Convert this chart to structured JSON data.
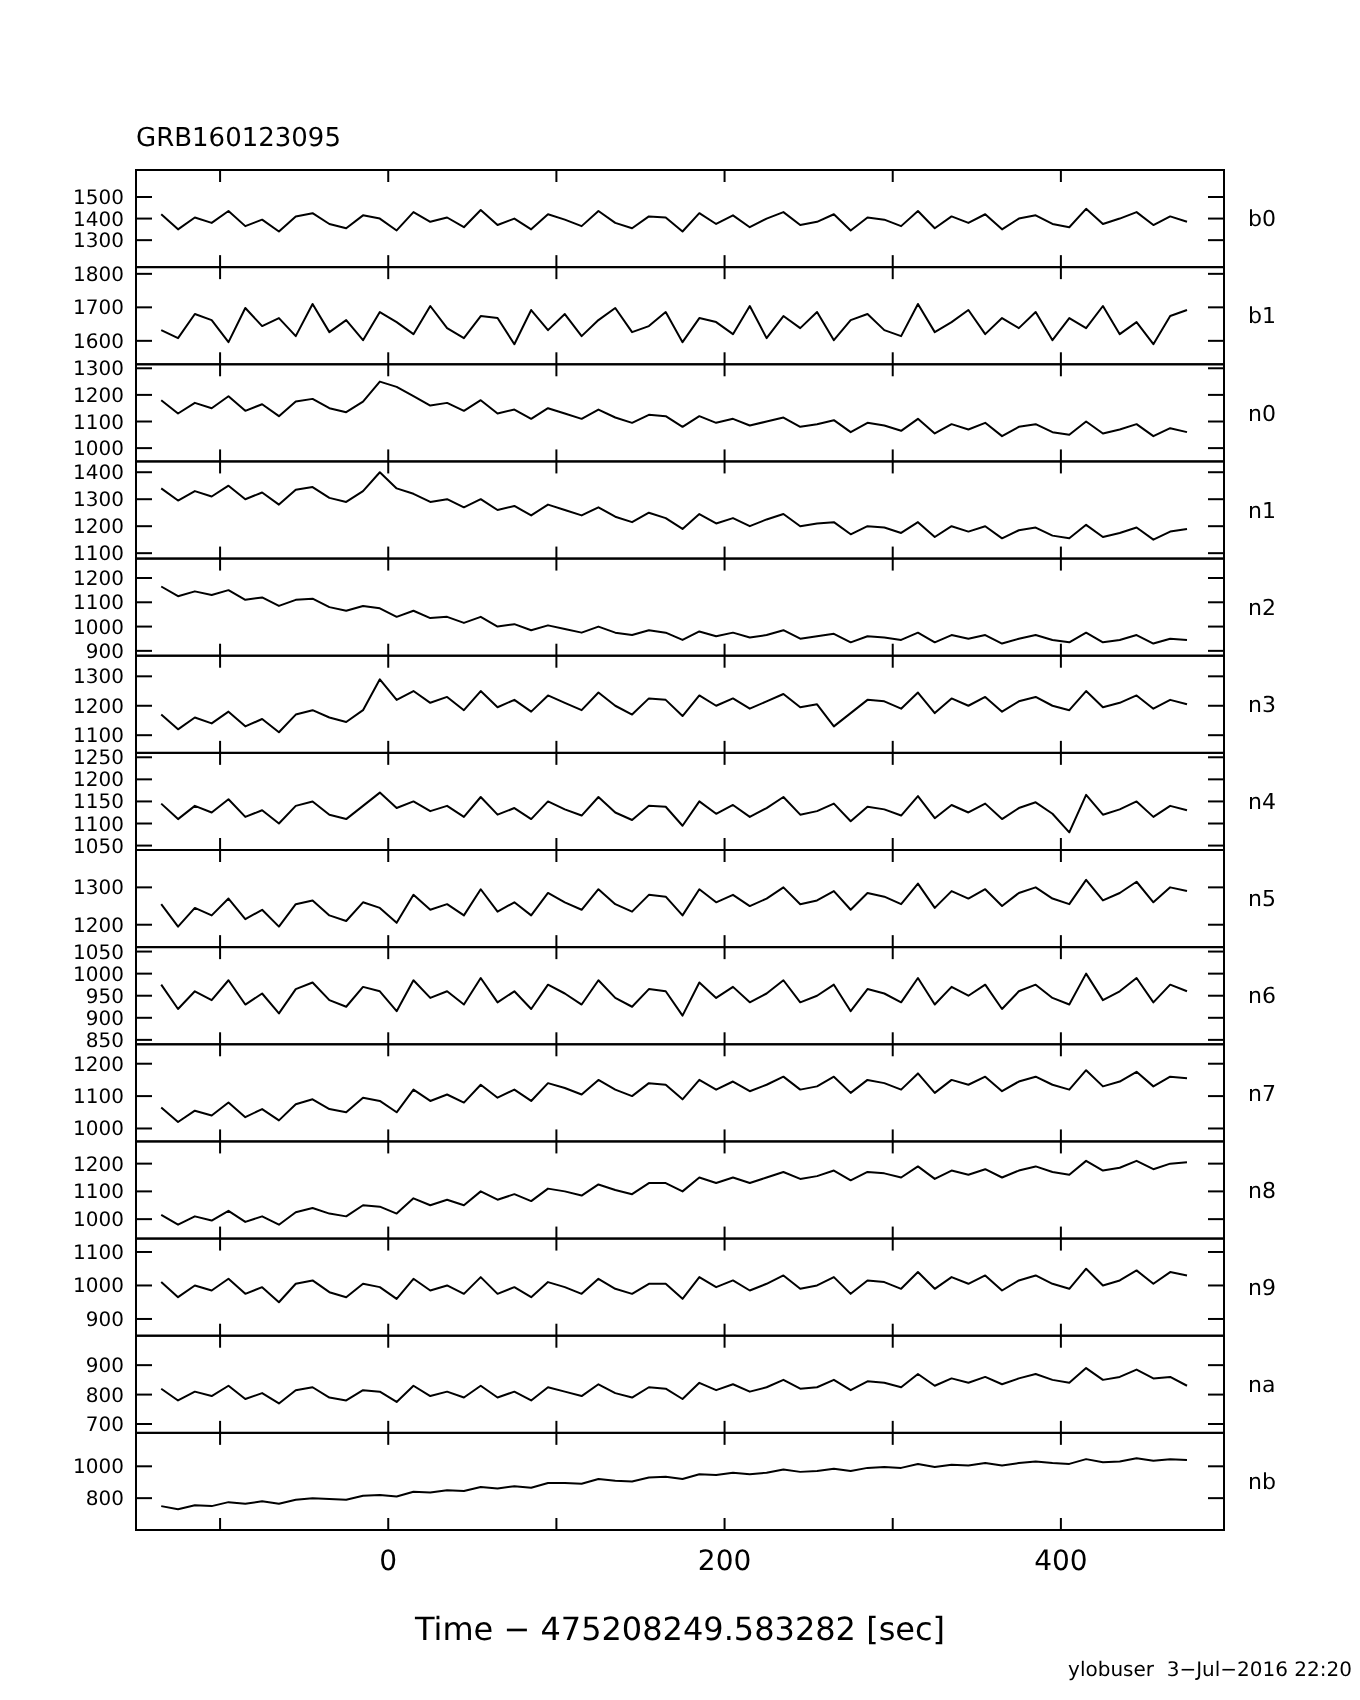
{
  "chart_data": [
    {
      "type": "line",
      "title": "GRB160123095",
      "legend": "right",
      "tick_labels": "y",
      "xlim": [
        -150,
        497
      ],
      "xticks": [
        {
          "value": -100,
          "label": null
        },
        0,
        {
          "value": 100,
          "label": null
        },
        200,
        {
          "value": 300,
          "label": null
        },
        400
      ],
      "ylim": [
        1175,
        1625
      ],
      "yticks": [
        1300,
        1400,
        1500
      ],
      "x": [
        -135,
        -125,
        -115,
        -105,
        -95,
        -85,
        -75,
        -65,
        -55,
        -45,
        -35,
        -25,
        -15,
        -5,
        5,
        15,
        25,
        35,
        45,
        55,
        65,
        75,
        85,
        95,
        105,
        115,
        125,
        135,
        145,
        155,
        165,
        175,
        185,
        195,
        205,
        215,
        225,
        235,
        245,
        255,
        265,
        275,
        285,
        295,
        305,
        315,
        325,
        335,
        345,
        355,
        365,
        375,
        385,
        395,
        405,
        415,
        425,
        435,
        445,
        455,
        465,
        475
      ],
      "series": [
        {
          "name": "b0",
          "color": "#000000",
          "values": [
            1420,
            1350,
            1405,
            1380,
            1435,
            1365,
            1395,
            1340,
            1410,
            1425,
            1375,
            1355,
            1415,
            1400,
            1345,
            1430,
            1385,
            1405,
            1360,
            1440,
            1370,
            1400,
            1350,
            1420,
            1395,
            1365,
            1435,
            1380,
            1355,
            1410,
            1405,
            1340,
            1425,
            1375,
            1415,
            1360,
            1400,
            1430,
            1370,
            1385,
            1420,
            1345,
            1405,
            1395,
            1365,
            1435,
            1355,
            1410,
            1380,
            1420,
            1350,
            1400,
            1415,
            1375,
            1360,
            1445,
            1375,
            1400,
            1430,
            1370,
            1410,
            1385
          ]
        }
      ]
    },
    {
      "type": "line",
      "legend": "right",
      "tick_labels": "y",
      "xlim": [
        -150,
        497
      ],
      "xticks": [
        {
          "value": -100,
          "label": null
        },
        0,
        {
          "value": 100,
          "label": null
        },
        200,
        {
          "value": 300,
          "label": null
        },
        400
      ],
      "ylim": [
        1530,
        1820
      ],
      "yticks": [
        1600,
        1700,
        1800
      ],
      "x": [
        -135,
        -125,
        -115,
        -105,
        -95,
        -85,
        -75,
        -65,
        -55,
        -45,
        -35,
        -25,
        -15,
        -5,
        5,
        15,
        25,
        35,
        45,
        55,
        65,
        75,
        85,
        95,
        105,
        115,
        125,
        135,
        145,
        155,
        165,
        175,
        185,
        195,
        205,
        215,
        225,
        235,
        245,
        255,
        265,
        275,
        285,
        295,
        305,
        315,
        325,
        335,
        345,
        355,
        365,
        375,
        385,
        395,
        405,
        415,
        425,
        435,
        445,
        455,
        465,
        475
      ],
      "series": [
        {
          "name": "b1",
          "color": "#000000",
          "values": [
            1632,
            1608,
            1680,
            1662,
            1596,
            1698,
            1644,
            1668,
            1614,
            1710,
            1626,
            1662,
            1602,
            1686,
            1656,
            1620,
            1704,
            1638,
            1608,
            1674,
            1668,
            1590,
            1692,
            1632,
            1680,
            1614,
            1662,
            1698,
            1626,
            1644,
            1686,
            1596,
            1668,
            1656,
            1620,
            1704,
            1608,
            1674,
            1638,
            1686,
            1602,
            1662,
            1680,
            1632,
            1614,
            1710,
            1626,
            1656,
            1692,
            1620,
            1668,
            1638,
            1686,
            1602,
            1668,
            1638,
            1704,
            1620,
            1656,
            1590,
            1674,
            1692
          ]
        }
      ]
    },
    {
      "type": "line",
      "legend": "right",
      "tick_labels": "y",
      "xlim": [
        -150,
        497
      ],
      "xticks": [
        {
          "value": -100,
          "label": null
        },
        0,
        {
          "value": 100,
          "label": null
        },
        200,
        {
          "value": 300,
          "label": null
        },
        400
      ],
      "ylim": [
        950,
        1315
      ],
      "yticks": [
        1000,
        1100,
        1200,
        1300
      ],
      "x": [
        -135,
        -125,
        -115,
        -105,
        -95,
        -85,
        -75,
        -65,
        -55,
        -45,
        -35,
        -25,
        -15,
        -5,
        5,
        15,
        25,
        35,
        45,
        55,
        65,
        75,
        85,
        95,
        105,
        115,
        125,
        135,
        145,
        155,
        165,
        175,
        185,
        195,
        205,
        215,
        225,
        235,
        245,
        255,
        265,
        275,
        285,
        295,
        305,
        315,
        325,
        335,
        345,
        355,
        365,
        375,
        385,
        395,
        405,
        415,
        425,
        435,
        445,
        455,
        465,
        475
      ],
      "series": [
        {
          "name": "n0",
          "color": "#000000",
          "values": [
            1180,
            1130,
            1170,
            1150,
            1195,
            1140,
            1165,
            1120,
            1175,
            1185,
            1150,
            1135,
            1175,
            1250,
            1230,
            1195,
            1160,
            1170,
            1140,
            1180,
            1130,
            1145,
            1110,
            1150,
            1130,
            1110,
            1145,
            1115,
            1095,
            1125,
            1120,
            1080,
            1120,
            1095,
            1110,
            1085,
            1100,
            1115,
            1080,
            1090,
            1105,
            1060,
            1095,
            1085,
            1065,
            1110,
            1055,
            1090,
            1070,
            1095,
            1045,
            1080,
            1090,
            1060,
            1050,
            1100,
            1055,
            1070,
            1090,
            1045,
            1075,
            1060
          ]
        }
      ]
    },
    {
      "type": "line",
      "legend": "right",
      "tick_labels": "y",
      "xlim": [
        -150,
        497
      ],
      "xticks": [
        {
          "value": -100,
          "label": null
        },
        0,
        {
          "value": 100,
          "label": null
        },
        200,
        {
          "value": 300,
          "label": null
        },
        400
      ],
      "ylim": [
        1080,
        1440
      ],
      "yticks": [
        1100,
        1200,
        1300,
        1400
      ],
      "x": [
        -135,
        -125,
        -115,
        -105,
        -95,
        -85,
        -75,
        -65,
        -55,
        -45,
        -35,
        -25,
        -15,
        -5,
        5,
        15,
        25,
        35,
        45,
        55,
        65,
        75,
        85,
        95,
        105,
        115,
        125,
        135,
        145,
        155,
        165,
        175,
        185,
        195,
        205,
        215,
        225,
        235,
        245,
        255,
        265,
        275,
        285,
        295,
        305,
        315,
        325,
        335,
        345,
        355,
        365,
        375,
        385,
        395,
        405,
        415,
        425,
        435,
        445,
        455,
        465,
        475
      ],
      "series": [
        {
          "name": "n1",
          "color": "#000000",
          "values": [
            1340,
            1295,
            1330,
            1310,
            1350,
            1300,
            1325,
            1280,
            1335,
            1345,
            1305,
            1290,
            1330,
            1400,
            1340,
            1320,
            1290,
            1300,
            1270,
            1300,
            1260,
            1275,
            1240,
            1280,
            1260,
            1240,
            1270,
            1235,
            1215,
            1250,
            1230,
            1190,
            1245,
            1210,
            1230,
            1200,
            1225,
            1245,
            1200,
            1210,
            1215,
            1170,
            1200,
            1195,
            1175,
            1215,
            1160,
            1200,
            1180,
            1200,
            1155,
            1185,
            1195,
            1165,
            1155,
            1205,
            1160,
            1175,
            1195,
            1150,
            1180,
            1190
          ]
        }
      ]
    },
    {
      "type": "line",
      "legend": "right",
      "tick_labels": "y",
      "xlim": [
        -150,
        497
      ],
      "xticks": [
        {
          "value": -100,
          "label": null
        },
        0,
        {
          "value": 100,
          "label": null
        },
        200,
        {
          "value": 300,
          "label": null
        },
        400
      ],
      "ylim": [
        880,
        1280
      ],
      "yticks": [
        900,
        1000,
        1100,
        1200
      ],
      "x": [
        -135,
        -125,
        -115,
        -105,
        -95,
        -85,
        -75,
        -65,
        -55,
        -45,
        -35,
        -25,
        -15,
        -5,
        5,
        15,
        25,
        35,
        45,
        55,
        65,
        75,
        85,
        95,
        105,
        115,
        125,
        135,
        145,
        155,
        165,
        175,
        185,
        195,
        205,
        215,
        225,
        235,
        245,
        255,
        265,
        275,
        285,
        295,
        305,
        315,
        325,
        335,
        345,
        355,
        365,
        375,
        385,
        395,
        405,
        415,
        425,
        435,
        445,
        455,
        465,
        475
      ],
      "series": [
        {
          "name": "n2",
          "color": "#000000",
          "values": [
            1165,
            1125,
            1145,
            1130,
            1150,
            1110,
            1120,
            1085,
            1110,
            1115,
            1080,
            1065,
            1085,
            1075,
            1040,
            1065,
            1035,
            1040,
            1015,
            1040,
            1000,
            1010,
            985,
            1005,
            990,
            975,
            1000,
            975,
            965,
            985,
            975,
            945,
            980,
            960,
            975,
            955,
            965,
            985,
            950,
            960,
            970,
            935,
            960,
            955,
            945,
            975,
            935,
            965,
            950,
            965,
            930,
            950,
            965,
            945,
            935,
            975,
            935,
            945,
            965,
            930,
            950,
            945
          ]
        }
      ]
    },
    {
      "type": "line",
      "legend": "right",
      "tick_labels": "y",
      "xlim": [
        -150,
        497
      ],
      "xticks": [
        {
          "value": -100,
          "label": null
        },
        0,
        {
          "value": 100,
          "label": null
        },
        200,
        {
          "value": 300,
          "label": null
        },
        400
      ],
      "ylim": [
        1040,
        1370
      ],
      "yticks": [
        1100,
        1200,
        1300
      ],
      "x": [
        -135,
        -125,
        -115,
        -105,
        -95,
        -85,
        -75,
        -65,
        -55,
        -45,
        -35,
        -25,
        -15,
        -5,
        5,
        15,
        25,
        35,
        45,
        55,
        65,
        75,
        85,
        95,
        105,
        115,
        125,
        135,
        145,
        155,
        165,
        175,
        185,
        195,
        205,
        215,
        225,
        235,
        245,
        255,
        265,
        275,
        285,
        295,
        305,
        315,
        325,
        335,
        345,
        355,
        365,
        375,
        385,
        395,
        405,
        415,
        425,
        435,
        445,
        455,
        465,
        475
      ],
      "series": [
        {
          "name": "n3",
          "color": "#000000",
          "values": [
            1170,
            1120,
            1160,
            1140,
            1180,
            1130,
            1155,
            1110,
            1170,
            1185,
            1160,
            1145,
            1185,
            1290,
            1220,
            1250,
            1210,
            1230,
            1185,
            1250,
            1195,
            1220,
            1180,
            1235,
            1210,
            1185,
            1245,
            1200,
            1170,
            1225,
            1220,
            1165,
            1235,
            1200,
            1225,
            1190,
            1215,
            1240,
            1195,
            1205,
            1130,
            1175,
            1220,
            1215,
            1190,
            1245,
            1175,
            1225,
            1200,
            1230,
            1180,
            1215,
            1230,
            1200,
            1185,
            1250,
            1195,
            1210,
            1235,
            1190,
            1220,
            1205
          ]
        }
      ]
    },
    {
      "type": "line",
      "legend": "right",
      "tick_labels": "y",
      "xlim": [
        -150,
        497
      ],
      "xticks": [
        {
          "value": -100,
          "label": null
        },
        0,
        {
          "value": 100,
          "label": null
        },
        200,
        {
          "value": 300,
          "label": null
        },
        400
      ],
      "ylim": [
        1040,
        1260
      ],
      "yticks": [
        1050,
        1100,
        1150,
        1200,
        1250
      ],
      "x": [
        -135,
        -125,
        -115,
        -105,
        -95,
        -85,
        -75,
        -65,
        -55,
        -45,
        -35,
        -25,
        -15,
        -5,
        5,
        15,
        25,
        35,
        45,
        55,
        65,
        75,
        85,
        95,
        105,
        115,
        125,
        135,
        145,
        155,
        165,
        175,
        185,
        195,
        205,
        215,
        225,
        235,
        245,
        255,
        265,
        275,
        285,
        295,
        305,
        315,
        325,
        335,
        345,
        355,
        365,
        375,
        385,
        395,
        405,
        415,
        425,
        435,
        445,
        455,
        465,
        475
      ],
      "series": [
        {
          "name": "n4",
          "color": "#000000",
          "values": [
            1145,
            1110,
            1140,
            1125,
            1155,
            1115,
            1130,
            1100,
            1140,
            1150,
            1120,
            1110,
            1140,
            1170,
            1135,
            1150,
            1128,
            1140,
            1115,
            1160,
            1120,
            1135,
            1110,
            1150,
            1132,
            1118,
            1160,
            1125,
            1108,
            1140,
            1138,
            1095,
            1150,
            1122,
            1142,
            1115,
            1135,
            1160,
            1120,
            1128,
            1145,
            1105,
            1138,
            1132,
            1118,
            1162,
            1112,
            1142,
            1125,
            1145,
            1110,
            1135,
            1148,
            1122,
            1080,
            1165,
            1120,
            1132,
            1150,
            1115,
            1140,
            1130
          ]
        }
      ]
    },
    {
      "type": "line",
      "legend": "right",
      "tick_labels": "y",
      "xlim": [
        -150,
        497
      ],
      "xticks": [
        {
          "value": -100,
          "label": null
        },
        0,
        {
          "value": 100,
          "label": null
        },
        200,
        {
          "value": 300,
          "label": null
        },
        400
      ],
      "ylim": [
        1140,
        1400
      ],
      "yticks": [
        1200,
        1300
      ],
      "x": [
        -135,
        -125,
        -115,
        -105,
        -95,
        -85,
        -75,
        -65,
        -55,
        -45,
        -35,
        -25,
        -15,
        -5,
        5,
        15,
        25,
        35,
        45,
        55,
        65,
        75,
        85,
        95,
        105,
        115,
        125,
        135,
        145,
        155,
        165,
        175,
        185,
        195,
        205,
        215,
        225,
        235,
        245,
        255,
        265,
        275,
        285,
        295,
        305,
        315,
        325,
        335,
        345,
        355,
        365,
        375,
        385,
        395,
        405,
        415,
        425,
        435,
        445,
        455,
        465,
        475
      ],
      "series": [
        {
          "name": "n5",
          "color": "#000000",
          "values": [
            1255,
            1195,
            1245,
            1225,
            1270,
            1215,
            1240,
            1195,
            1255,
            1265,
            1225,
            1210,
            1260,
            1245,
            1205,
            1280,
            1240,
            1255,
            1225,
            1295,
            1235,
            1260,
            1225,
            1285,
            1260,
            1240,
            1295,
            1255,
            1235,
            1280,
            1275,
            1225,
            1295,
            1260,
            1280,
            1250,
            1270,
            1300,
            1255,
            1265,
            1290,
            1240,
            1285,
            1275,
            1255,
            1310,
            1245,
            1290,
            1270,
            1295,
            1250,
            1285,
            1300,
            1270,
            1255,
            1320,
            1265,
            1285,
            1315,
            1260,
            1300,
            1290
          ]
        }
      ]
    },
    {
      "type": "line",
      "legend": "right",
      "tick_labels": "y",
      "xlim": [
        -150,
        497
      ],
      "xticks": [
        {
          "value": -100,
          "label": null
        },
        0,
        {
          "value": 100,
          "label": null
        },
        200,
        {
          "value": 300,
          "label": null
        },
        400
      ],
      "ylim": [
        840,
        1060
      ],
      "yticks": [
        850,
        900,
        950,
        1000,
        1050
      ],
      "x": [
        -135,
        -125,
        -115,
        -105,
        -95,
        -85,
        -75,
        -65,
        -55,
        -45,
        -35,
        -25,
        -15,
        -5,
        5,
        15,
        25,
        35,
        45,
        55,
        65,
        75,
        85,
        95,
        105,
        115,
        125,
        135,
        145,
        155,
        165,
        175,
        185,
        195,
        205,
        215,
        225,
        235,
        245,
        255,
        265,
        275,
        285,
        295,
        305,
        315,
        325,
        335,
        345,
        355,
        365,
        375,
        385,
        395,
        405,
        415,
        425,
        435,
        445,
        455,
        465,
        475
      ],
      "series": [
        {
          "name": "n6",
          "color": "#000000",
          "values": [
            975,
            920,
            960,
            940,
            985,
            930,
            955,
            910,
            965,
            980,
            940,
            925,
            970,
            960,
            915,
            985,
            945,
            960,
            930,
            990,
            935,
            960,
            920,
            975,
            955,
            930,
            985,
            945,
            925,
            965,
            960,
            905,
            980,
            945,
            970,
            935,
            955,
            985,
            935,
            950,
            975,
            915,
            965,
            955,
            935,
            990,
            930,
            970,
            950,
            975,
            920,
            960,
            975,
            945,
            930,
            1000,
            940,
            960,
            990,
            935,
            975,
            960
          ]
        }
      ]
    },
    {
      "type": "line",
      "legend": "right",
      "tick_labels": "y",
      "xlim": [
        -150,
        497
      ],
      "xticks": [
        {
          "value": -100,
          "label": null
        },
        0,
        {
          "value": 100,
          "label": null
        },
        200,
        {
          "value": 300,
          "label": null
        },
        400
      ],
      "ylim": [
        960,
        1260
      ],
      "yticks": [
        1000,
        1100,
        1200
      ],
      "x": [
        -135,
        -125,
        -115,
        -105,
        -95,
        -85,
        -75,
        -65,
        -55,
        -45,
        -35,
        -25,
        -15,
        -5,
        5,
        15,
        25,
        35,
        45,
        55,
        65,
        75,
        85,
        95,
        105,
        115,
        125,
        135,
        145,
        155,
        165,
        175,
        185,
        195,
        205,
        215,
        225,
        235,
        245,
        255,
        265,
        275,
        285,
        295,
        305,
        315,
        325,
        335,
        345,
        355,
        365,
        375,
        385,
        395,
        405,
        415,
        425,
        435,
        445,
        455,
        465,
        475
      ],
      "series": [
        {
          "name": "n7",
          "color": "#000000",
          "values": [
            1065,
            1020,
            1055,
            1040,
            1080,
            1035,
            1060,
            1025,
            1075,
            1090,
            1060,
            1050,
            1095,
            1085,
            1050,
            1120,
            1085,
            1105,
            1080,
            1135,
            1095,
            1120,
            1085,
            1140,
            1125,
            1105,
            1150,
            1120,
            1100,
            1140,
            1135,
            1090,
            1150,
            1120,
            1145,
            1115,
            1135,
            1160,
            1120,
            1130,
            1160,
            1110,
            1150,
            1140,
            1120,
            1170,
            1110,
            1150,
            1135,
            1160,
            1115,
            1145,
            1160,
            1135,
            1120,
            1180,
            1130,
            1145,
            1175,
            1130,
            1160,
            1155
          ]
        }
      ]
    },
    {
      "type": "line",
      "legend": "right",
      "tick_labels": "y",
      "xlim": [
        -150,
        497
      ],
      "xticks": [
        {
          "value": -100,
          "label": null
        },
        0,
        {
          "value": 100,
          "label": null
        },
        200,
        {
          "value": 300,
          "label": null
        },
        400
      ],
      "ylim": [
        930,
        1280
      ],
      "yticks": [
        1000,
        1100,
        1200
      ],
      "x": [
        -135,
        -125,
        -115,
        -105,
        -95,
        -85,
        -75,
        -65,
        -55,
        -45,
        -35,
        -25,
        -15,
        -5,
        5,
        15,
        25,
        35,
        45,
        55,
        65,
        75,
        85,
        95,
        105,
        115,
        125,
        135,
        145,
        155,
        165,
        175,
        185,
        195,
        205,
        215,
        225,
        235,
        245,
        255,
        265,
        275,
        285,
        295,
        305,
        315,
        325,
        335,
        345,
        355,
        365,
        375,
        385,
        395,
        405,
        415,
        425,
        435,
        445,
        455,
        465,
        475
      ],
      "series": [
        {
          "name": "n8",
          "color": "#000000",
          "values": [
            1015,
            980,
            1010,
            995,
            1030,
            990,
            1010,
            980,
            1025,
            1040,
            1020,
            1010,
            1050,
            1045,
            1020,
            1075,
            1050,
            1070,
            1050,
            1100,
            1070,
            1090,
            1065,
            1110,
            1100,
            1085,
            1125,
            1105,
            1090,
            1130,
            1130,
            1100,
            1150,
            1130,
            1150,
            1130,
            1150,
            1170,
            1145,
            1155,
            1175,
            1140,
            1170,
            1165,
            1150,
            1190,
            1145,
            1175,
            1160,
            1180,
            1150,
            1175,
            1190,
            1170,
            1160,
            1210,
            1175,
            1185,
            1210,
            1180,
            1200,
            1205
          ]
        }
      ]
    },
    {
      "type": "line",
      "legend": "right",
      "tick_labels": "y",
      "xlim": [
        -150,
        497
      ],
      "xticks": [
        {
          "value": -100,
          "label": null
        },
        0,
        {
          "value": 100,
          "label": null
        },
        200,
        {
          "value": 300,
          "label": null
        },
        400
      ],
      "ylim": [
        850,
        1140
      ],
      "yticks": [
        900,
        1000,
        1100
      ],
      "x": [
        -135,
        -125,
        -115,
        -105,
        -95,
        -85,
        -75,
        -65,
        -55,
        -45,
        -35,
        -25,
        -15,
        -5,
        5,
        15,
        25,
        35,
        45,
        55,
        65,
        75,
        85,
        95,
        105,
        115,
        125,
        135,
        145,
        155,
        165,
        175,
        185,
        195,
        205,
        215,
        225,
        235,
        245,
        255,
        265,
        275,
        285,
        295,
        305,
        315,
        325,
        335,
        345,
        355,
        365,
        375,
        385,
        395,
        405,
        415,
        425,
        435,
        445,
        455,
        465,
        475
      ],
      "series": [
        {
          "name": "n9",
          "color": "#000000",
          "values": [
            1010,
            965,
            1000,
            985,
            1020,
            975,
            995,
            950,
            1005,
            1015,
            980,
            965,
            1005,
            995,
            960,
            1020,
            985,
            1000,
            975,
            1025,
            975,
            995,
            965,
            1010,
            995,
            975,
            1020,
            990,
            975,
            1005,
            1005,
            960,
            1025,
            995,
            1015,
            985,
            1005,
            1030,
            990,
            1000,
            1025,
            975,
            1015,
            1010,
            990,
            1040,
            990,
            1025,
            1005,
            1030,
            985,
            1015,
            1030,
            1005,
            990,
            1050,
            1000,
            1015,
            1045,
            1005,
            1040,
            1030
          ]
        }
      ]
    },
    {
      "type": "line",
      "legend": "right",
      "tick_labels": "y",
      "xlim": [
        -150,
        497
      ],
      "xticks": [
        {
          "value": -100,
          "label": null
        },
        0,
        {
          "value": 100,
          "label": null
        },
        200,
        {
          "value": 300,
          "label": null
        },
        400
      ],
      "ylim": [
        670,
        1000
      ],
      "yticks": [
        700,
        800,
        900
      ],
      "x": [
        -135,
        -125,
        -115,
        -105,
        -95,
        -85,
        -75,
        -65,
        -55,
        -45,
        -35,
        -25,
        -15,
        -5,
        5,
        15,
        25,
        35,
        45,
        55,
        65,
        75,
        85,
        95,
        105,
        115,
        125,
        135,
        145,
        155,
        165,
        175,
        185,
        195,
        205,
        215,
        225,
        235,
        245,
        255,
        265,
        275,
        285,
        295,
        305,
        315,
        325,
        335,
        345,
        355,
        365,
        375,
        385,
        395,
        405,
        415,
        425,
        435,
        445,
        455,
        465,
        475
      ],
      "series": [
        {
          "name": "na",
          "color": "#000000",
          "values": [
            820,
            780,
            810,
            795,
            830,
            785,
            805,
            770,
            815,
            825,
            790,
            780,
            815,
            810,
            775,
            830,
            795,
            810,
            790,
            830,
            790,
            810,
            780,
            825,
            810,
            795,
            835,
            805,
            790,
            825,
            820,
            785,
            840,
            815,
            835,
            810,
            825,
            850,
            820,
            825,
            850,
            815,
            845,
            840,
            825,
            870,
            830,
            855,
            840,
            860,
            835,
            855,
            870,
            850,
            840,
            890,
            850,
            860,
            885,
            855,
            860,
            830
          ]
        }
      ]
    },
    {
      "type": "line",
      "legend": "right",
      "xlabel": "Time − 475208249.583282 [sec]",
      "annotations": [
        "ylobuser  3−Jul−2016 22:20"
      ],
      "xlim": [
        -150,
        497
      ],
      "xticks": [
        {
          "value": -100,
          "label": null
        },
        0,
        {
          "value": 100,
          "label": null
        },
        200,
        {
          "value": 300,
          "label": null
        },
        400
      ],
      "ylim": [
        600,
        1210
      ],
      "yticks": [
        800,
        1000
      ],
      "x": [
        -135,
        -125,
        -115,
        -105,
        -95,
        -85,
        -75,
        -65,
        -55,
        -45,
        -35,
        -25,
        -15,
        -5,
        5,
        15,
        25,
        35,
        45,
        55,
        65,
        75,
        85,
        95,
        105,
        115,
        125,
        135,
        145,
        155,
        165,
        175,
        185,
        195,
        205,
        215,
        225,
        235,
        245,
        255,
        265,
        275,
        285,
        295,
        305,
        315,
        325,
        335,
        345,
        355,
        365,
        375,
        385,
        395,
        405,
        415,
        425,
        435,
        445,
        455,
        465,
        475
      ],
      "series": [
        {
          "name": "nb",
          "color": "#000000",
          "values": [
            750,
            730,
            755,
            750,
            775,
            765,
            780,
            765,
            790,
            800,
            795,
            790,
            815,
            820,
            810,
            840,
            835,
            850,
            845,
            870,
            860,
            875,
            865,
            895,
            895,
            890,
            920,
            910,
            905,
            930,
            935,
            920,
            950,
            945,
            960,
            950,
            960,
            980,
            965,
            970,
            985,
            970,
            990,
            995,
            990,
            1015,
            995,
            1010,
            1005,
            1020,
            1005,
            1020,
            1030,
            1020,
            1015,
            1045,
            1025,
            1030,
            1050,
            1035,
            1045,
            1040
          ]
        }
      ]
    }
  ]
}
